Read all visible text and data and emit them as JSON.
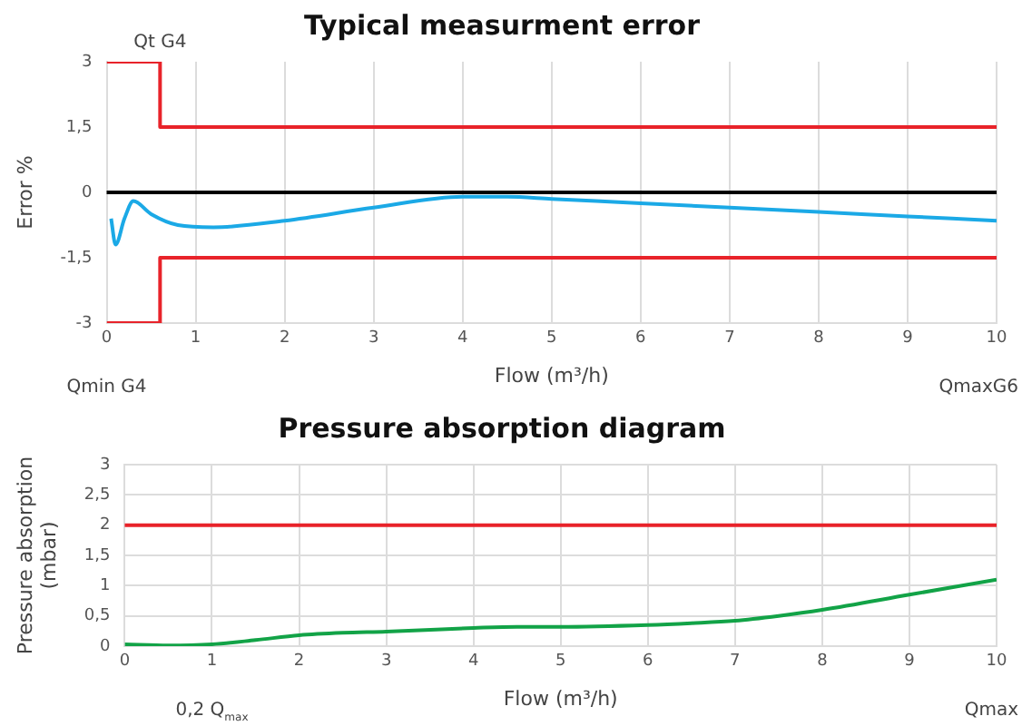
{
  "chart_data": [
    {
      "type": "line",
      "title": "Typical measurment error",
      "xlabel": "Flow (m³/h)",
      "ylabel": "Error %",
      "xlim": [
        0,
        10
      ],
      "xticks": [
        0,
        1,
        2,
        3,
        4,
        5,
        6,
        7,
        8,
        9,
        10
      ],
      "ylim": [
        -3,
        3
      ],
      "yticks": [
        -3,
        {
          "value": -1.5,
          "label": "-1,5"
        },
        0,
        {
          "value": 1.5,
          "label": "1,5"
        },
        3
      ],
      "grid": "x",
      "legend": false,
      "marker": "none",
      "line_style": "solid",
      "series": [
        {
          "color": "#e8232a",
          "x": [
            0,
            0.6,
            0.6,
            10
          ],
          "values": [
            3,
            3,
            1.5,
            1.5
          ]
        },
        {
          "color": "#e8232a",
          "x": [
            0,
            0.6,
            0.6,
            10
          ],
          "values": [
            -3,
            -3,
            -1.5,
            -1.5
          ]
        },
        {
          "color": "#1ba9e6",
          "x": [
            0.05,
            0.1,
            0.2,
            0.3,
            0.5,
            0.8,
            1.2,
            2,
            3,
            4,
            4.5,
            5,
            6,
            7,
            8,
            9,
            10
          ],
          "values": [
            -0.6,
            -1.2,
            -0.6,
            -0.2,
            -0.5,
            -0.75,
            -0.8,
            -0.65,
            -0.35,
            -0.1,
            -0.1,
            -0.15,
            -0.25,
            -0.35,
            -0.45,
            -0.55,
            -0.65
          ]
        }
      ],
      "ref_lines": [
        {
          "axis": "y",
          "value": 0,
          "color": "#000000"
        }
      ],
      "annotations": [
        {
          "text": "Qt G4",
          "x": 0.6,
          "y": 3
        },
        {
          "text": "Qmin G4",
          "x": 0,
          "y": -3
        },
        "QmaxG6"
      ]
    },
    {
      "type": "line",
      "title": "Pressure absorption diagram",
      "xlabel": "Flow (m³/h)",
      "ylabel": "Pressure absorption\n(mbar)",
      "xlim": [
        0,
        10
      ],
      "xticks": [
        0,
        1,
        2,
        3,
        4,
        5,
        6,
        7,
        8,
        9,
        10
      ],
      "ylim": [
        0,
        3
      ],
      "yticks": [
        0,
        {
          "value": 0.5,
          "label": "0,5"
        },
        1,
        {
          "value": 1.5,
          "label": "1,5"
        },
        2,
        {
          "value": 2.5,
          "label": "2,5"
        },
        3
      ],
      "grid": true,
      "legend": false,
      "marker": "none",
      "line_style": "solid",
      "series": [
        {
          "color": "#12a347",
          "x": [
            0,
            0.5,
            1,
            1.5,
            2,
            2.5,
            3,
            4,
            4.5,
            5,
            6,
            6.5,
            7,
            7.5,
            8,
            9,
            10
          ],
          "values": [
            0.03,
            0.01,
            0.03,
            0.1,
            0.18,
            0.22,
            0.24,
            0.3,
            0.32,
            0.32,
            0.35,
            0.38,
            0.42,
            0.5,
            0.6,
            0.85,
            1.1
          ]
        }
      ],
      "ref_lines": [
        {
          "axis": "y",
          "value": 2,
          "color": "#e8232a"
        }
      ],
      "annotations": [
        {
          "text": "0,2 Q$_{max}$",
          "x": 1,
          "y": 0
        },
        "Qmax"
      ]
    }
  ]
}
